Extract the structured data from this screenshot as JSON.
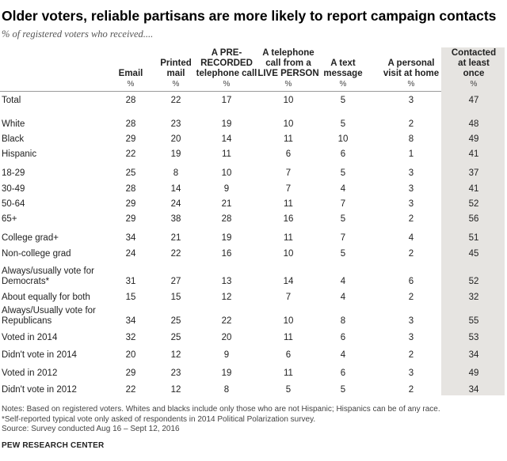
{
  "title": "Older voters, reliable partisans are more likely to report campaign contacts",
  "subtitle": "% of registered voters who received....",
  "chart_data": {
    "type": "table",
    "title": "Older voters, reliable partisans are more likely to report campaign contacts",
    "subtitle": "% of registered voters who received....",
    "columns": [
      {
        "label": "Email",
        "unit": "%"
      },
      {
        "label": "Printed mail",
        "unit": "%"
      },
      {
        "label": "A PRE-RECORDED telephone call",
        "unit": "%"
      },
      {
        "label": "A telephone call from a LIVE PERSON",
        "unit": "%"
      },
      {
        "label": "A text message",
        "unit": "%"
      },
      {
        "label": "A personal visit at home",
        "unit": "%"
      },
      {
        "label": "Contacted at least once",
        "unit": "%"
      }
    ],
    "header_lines": [
      [
        "Email"
      ],
      [
        "Printed",
        "mail"
      ],
      [
        "A PRE-",
        "RECORDED",
        "telephone call"
      ],
      [
        "A telephone",
        "call from a",
        "LIVE PERSON"
      ],
      [
        "A text",
        "message"
      ],
      [
        "A personal",
        "visit at home"
      ],
      [
        "Contacted",
        "at least",
        "once"
      ]
    ],
    "rows": [
      {
        "label": [
          "Total"
        ],
        "values": [
          28,
          22,
          17,
          10,
          5,
          3,
          47
        ]
      },
      {
        "label": [
          "White"
        ],
        "values": [
          28,
          23,
          19,
          10,
          5,
          2,
          48
        ]
      },
      {
        "label": [
          "Black"
        ],
        "values": [
          29,
          20,
          14,
          11,
          10,
          8,
          49
        ]
      },
      {
        "label": [
          "Hispanic"
        ],
        "values": [
          22,
          19,
          11,
          6,
          6,
          1,
          41
        ]
      },
      {
        "label": [
          "18-29"
        ],
        "values": [
          25,
          8,
          10,
          7,
          5,
          3,
          37
        ]
      },
      {
        "label": [
          "30-49"
        ],
        "values": [
          28,
          14,
          9,
          7,
          4,
          3,
          41
        ]
      },
      {
        "label": [
          "50-64"
        ],
        "values": [
          29,
          24,
          21,
          11,
          7,
          3,
          52
        ]
      },
      {
        "label": [
          "65+"
        ],
        "values": [
          29,
          38,
          28,
          16,
          5,
          2,
          56
        ]
      },
      {
        "label": [
          "College grad+"
        ],
        "values": [
          34,
          21,
          19,
          11,
          7,
          4,
          51
        ]
      },
      {
        "label": [
          "Non-college grad"
        ],
        "values": [
          24,
          22,
          16,
          10,
          5,
          2,
          45
        ]
      },
      {
        "label": [
          "Always/usually vote for",
          "Democrats*"
        ],
        "values": [
          31,
          27,
          13,
          14,
          4,
          6,
          52
        ]
      },
      {
        "label": [
          "About equally for both"
        ],
        "values": [
          15,
          15,
          12,
          7,
          4,
          2,
          32
        ]
      },
      {
        "label": [
          "Always/Usually vote for",
          "Republicans"
        ],
        "values": [
          34,
          25,
          22,
          10,
          8,
          3,
          55
        ]
      },
      {
        "label": [
          "Voted in 2014"
        ],
        "values": [
          32,
          25,
          20,
          11,
          6,
          3,
          53
        ]
      },
      {
        "label": [
          "Didn't vote in 2014"
        ],
        "values": [
          20,
          12,
          9,
          6,
          4,
          2,
          34
        ]
      },
      {
        "label": [
          "Voted in 2012"
        ],
        "values": [
          29,
          23,
          19,
          11,
          6,
          3,
          49
        ]
      },
      {
        "label": [
          "Didn't vote in 2012"
        ],
        "values": [
          22,
          12,
          8,
          5,
          5,
          2,
          34
        ]
      }
    ]
  },
  "notes": [
    "Notes: Based on registered voters. Whites and blacks include only those who are not Hispanic; Hispanics can be of any race.",
    "*Self-reported typical vote only asked of respondents in 2014 Political Polarization survey.",
    "Source: Survey conducted Aug 16 – Sept 12, 2016"
  ],
  "brand": "PEW RESEARCH CENTER",
  "colors": {
    "highlight_column": "#e6e4e1",
    "rule": "#9a9a9a"
  }
}
